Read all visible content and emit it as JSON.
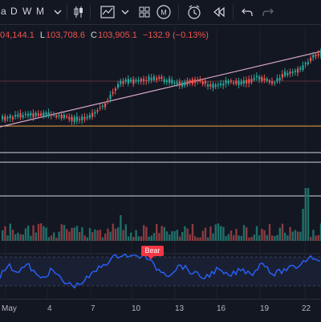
{
  "toolbar": {
    "intervals": [
      "D",
      "W",
      "M"
    ],
    "icons": [
      "chart-type-icon",
      "indicators-icon",
      "layout-icon",
      "magic-icon",
      "alert-icon",
      "replay-icon",
      "undo-icon",
      "redo-icon"
    ],
    "magic_label": "M"
  },
  "ohlc": {
    "open_label": "",
    "open_value": "04,144.1",
    "high_label": "",
    "low_label": "L",
    "low_value": "103,708.6",
    "close_label": "C",
    "close_value": "103,905.1",
    "change": "−132.9 (−0.13%)"
  },
  "indicator": {
    "signal_label": "Bear"
  },
  "xaxis": {
    "labels": [
      "May",
      "4",
      "7",
      "10",
      "13",
      "16",
      "19",
      "22"
    ]
  },
  "colors": {
    "background": "#131722",
    "up": "#26a69a",
    "down": "#ef5350",
    "rsi_line": "#2962ff",
    "trendline": "#d9a6c8",
    "support": "#f0a53e",
    "bear_badge": "#f23645"
  }
}
